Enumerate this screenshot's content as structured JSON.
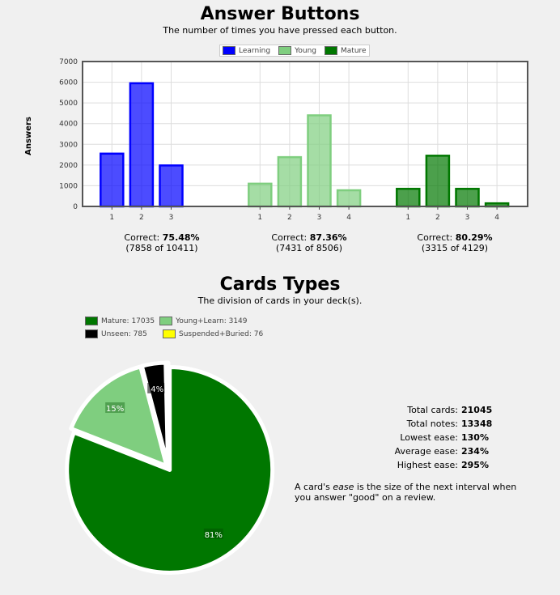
{
  "answer_buttons": {
    "title": "Answer Buttons",
    "subtitle": "The number of times you have pressed each button.",
    "legend": [
      {
        "label": "Learning",
        "color": "#0000ff"
      },
      {
        "label": "Young",
        "color": "#7fce7f"
      },
      {
        "label": "Mature",
        "color": "#007700"
      }
    ],
    "correct_label": "Correct:",
    "groups": [
      {
        "percent": "75.48%",
        "detail": "(7858 of 10411)"
      },
      {
        "percent": "87.36%",
        "detail": "(7431 of 8506)"
      },
      {
        "percent": "80.29%",
        "detail": "(3315 of 4129)"
      }
    ]
  },
  "card_types": {
    "title": "Cards Types",
    "subtitle": "The division of cards in your deck(s).",
    "legend": [
      {
        "label": "Mature: 17035",
        "color": "#007700"
      },
      {
        "label": "Young+Learn: 3149",
        "color": "#7fce7f"
      },
      {
        "label": "Unseen: 785",
        "color": "#000000"
      },
      {
        "label": "Suspended+Buried: 76",
        "color": "#ffff00"
      }
    ],
    "stats": [
      {
        "label": "Total cards:",
        "value": "21045"
      },
      {
        "label": "Total notes:",
        "value": "13348"
      },
      {
        "label": "Lowest ease:",
        "value": "130%"
      },
      {
        "label": "Average ease:",
        "value": "234%"
      },
      {
        "label": "Highest ease:",
        "value": "295%"
      }
    ],
    "note_prefix": "A card's ",
    "note_em": "ease",
    "note_suffix": " is the size of the next interval when you answer \"good\" on a review."
  },
  "chart_data": [
    {
      "type": "bar",
      "ylabel": "Answers",
      "ylim": [
        0,
        7000
      ],
      "yticks": [
        0,
        1000,
        2000,
        3000,
        4000,
        5000,
        6000,
        7000
      ],
      "grid": true,
      "legend_position": "top-center",
      "series": [
        {
          "name": "Learning",
          "color": "#0000ff",
          "x": [
            "1",
            "2",
            "3"
          ],
          "values": [
            2550,
            5950,
            1980
          ]
        },
        {
          "name": "Young",
          "color": "#7fce7f",
          "x": [
            "1",
            "2",
            "3",
            "4"
          ],
          "values": [
            1100,
            2380,
            4400,
            780
          ]
        },
        {
          "name": "Mature",
          "color": "#007700",
          "x": [
            "1",
            "2",
            "3",
            "4"
          ],
          "values": [
            850,
            2450,
            850,
            150
          ]
        }
      ]
    },
    {
      "type": "pie",
      "legend_position": "top-left",
      "slices": [
        {
          "name": "Mature",
          "value": 17035,
          "color": "#007700",
          "label": "81%"
        },
        {
          "name": "Young+Learn",
          "value": 3149,
          "color": "#7fce7f",
          "label": "15%"
        },
        {
          "name": "Unseen",
          "value": 785,
          "color": "#000000",
          "label": "4%"
        },
        {
          "name": "Suspended+Buried",
          "value": 76,
          "color": "#ffff00",
          "label": ""
        }
      ]
    }
  ]
}
